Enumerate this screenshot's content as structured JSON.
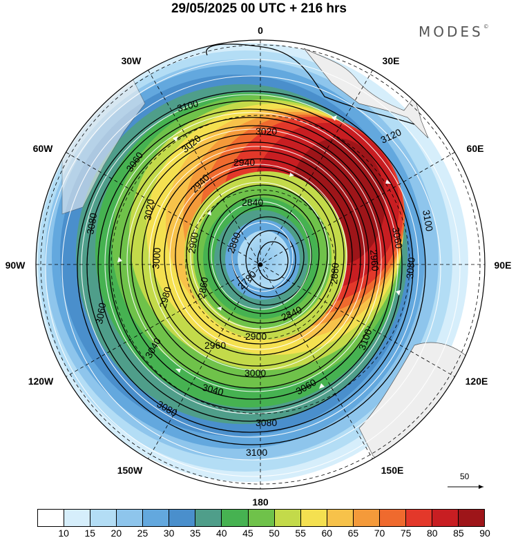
{
  "title": "29/05/2025  00 UTC  + 216 hrs",
  "brand": "MODES",
  "brand_mark": "©",
  "longitude_labels": {
    "n0": "0",
    "n30e": "30E",
    "n60e": "60E",
    "n90e": "90E",
    "n120e": "120E",
    "n150e": "150E",
    "n180": "180",
    "n150w": "150W",
    "n120w": "120W",
    "n90w": "90W",
    "n60w": "60W",
    "n30w": "30W"
  },
  "contour_labels": [
    "3100",
    "3020",
    "3120",
    "2940",
    "3060",
    "3020",
    "3060",
    "3100",
    "2940",
    "2840",
    "3020",
    "2960",
    "3080",
    "2900",
    "2800",
    "3080",
    "2880",
    "3000",
    "2780",
    "2860",
    "2980",
    "3060",
    "2840",
    "2900",
    "3040",
    "2960",
    "3000",
    "3100",
    "3060",
    "3040",
    "3080",
    "3080",
    "3100"
  ],
  "colorbar": {
    "unit_note": "",
    "levels": [
      "10",
      "15",
      "20",
      "25",
      "30",
      "35",
      "40",
      "45",
      "50",
      "55",
      "60",
      "65",
      "70",
      "75",
      "80",
      "85",
      "90"
    ],
    "colors": [
      "#ffffff",
      "#d6eefb",
      "#b3ddf5",
      "#8ec5ec",
      "#63a8de",
      "#4a8fcc",
      "#4f9e8a",
      "#46b251",
      "#6fc24a",
      "#c3da4a",
      "#f4e050",
      "#f7c24a",
      "#f49a3a",
      "#ef6a2e",
      "#e3382a",
      "#c81e22",
      "#9e1519"
    ]
  },
  "wind_scale_label": "50",
  "chart_data": {
    "type": "polar_stereographic_map",
    "field": "wind speed (shaded) and geopotential height contours",
    "shading_levels": [
      10,
      15,
      20,
      25,
      30,
      35,
      40,
      45,
      50,
      55,
      60,
      65,
      70,
      75,
      80,
      85,
      90
    ],
    "contour_levels": [
      2780,
      2800,
      2840,
      2860,
      2880,
      2900,
      2940,
      2960,
      2980,
      3000,
      3020,
      3040,
      3060,
      3080,
      3100,
      3120
    ],
    "jet_max_sector": "0 to 90E"
  }
}
